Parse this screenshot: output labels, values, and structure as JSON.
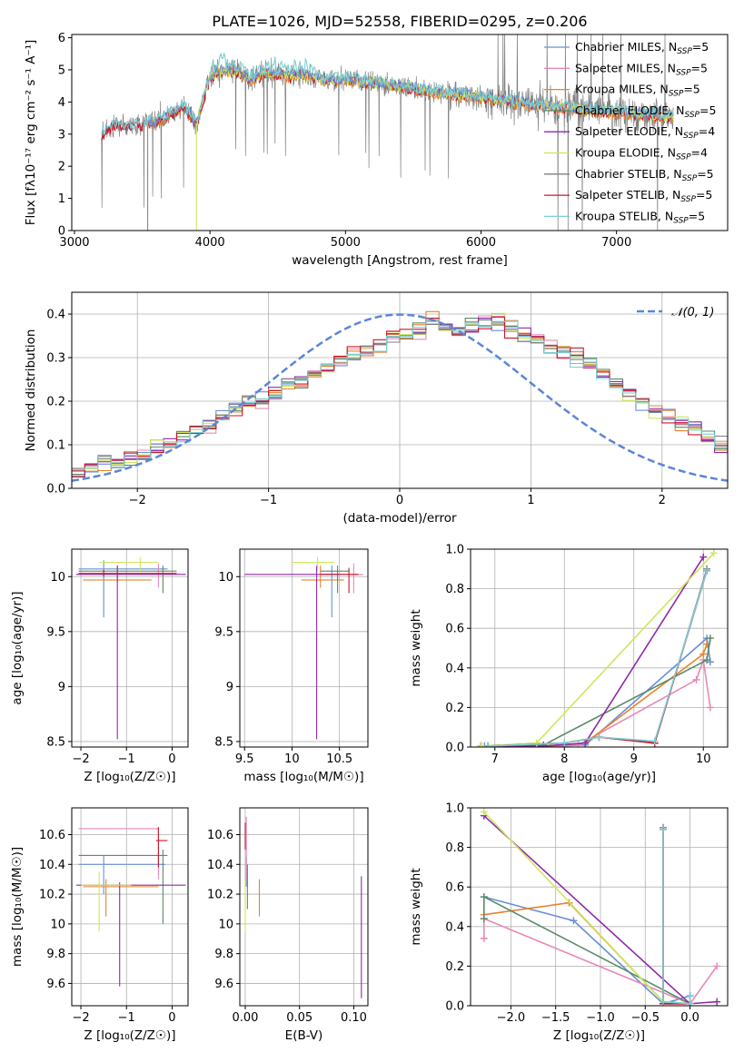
{
  "colors": {
    "Chabrier MILES": "#6a8fd6",
    "Salpeter MILES": "#e888b8",
    "Kroupa MILES": "#e8832a",
    "Chabrier ELODIE": "#5a8a6a",
    "Salpeter ELODIE": "#8e2aa8",
    "Kroupa ELODIE": "#cce85a",
    "Chabrier STELIB": "#7f7f7f",
    "Salpeter STELIB": "#c8182a",
    "Kroupa STELIB": "#7ccfd4",
    "normal": "#5a86d6",
    "grid": "#b0b0b0"
  },
  "chart_data": [
    {
      "id": "spectrum",
      "type": "line",
      "title": "PLATE=1026, MJD=52558, FIBERID=0295, z=0.206",
      "xlabel": "wavelength [Angstrom, rest frame]",
      "ylabel": "Flux [fλ10⁻¹⁷ erg cm⁻² s⁻¹ A⁻¹]",
      "xlim": [
        2980,
        7820
      ],
      "ylim": [
        0,
        6.1
      ],
      "xticks": [
        3000,
        4000,
        5000,
        6000,
        7000
      ],
      "yticks": [
        0,
        1,
        2,
        3,
        4,
        5,
        6
      ],
      "grid": false,
      "legend_position": "top-right",
      "legend": [
        {
          "label": "Chabrier MILES, N",
          "sub": "SSP",
          "suffix": "=5"
        },
        {
          "label": "Salpeter MILES, N",
          "sub": "SSP",
          "suffix": "=5"
        },
        {
          "label": "Kroupa MILES, N",
          "sub": "SSP",
          "suffix": "=5"
        },
        {
          "label": "Chabrier ELODIE, N",
          "sub": "SSP",
          "suffix": "=5"
        },
        {
          "label": "Salpeter ELODIE, N",
          "sub": "SSP",
          "suffix": "=4"
        },
        {
          "label": "Kroupa ELODIE, N",
          "sub": "SSP",
          "suffix": "=4"
        },
        {
          "label": "Chabrier STELIB, N",
          "sub": "SSP",
          "suffix": "=5"
        },
        {
          "label": "Salpeter STELIB, N",
          "sub": "SSP",
          "suffix": "=5"
        },
        {
          "label": "Kroupa STELIB, N",
          "sub": "SSP",
          "suffix": "=5"
        }
      ],
      "continuum": [
        [
          3200,
          3.0
        ],
        [
          3300,
          3.3
        ],
        [
          3400,
          3.25
        ],
        [
          3500,
          3.3
        ],
        [
          3600,
          3.4
        ],
        [
          3700,
          3.6
        ],
        [
          3800,
          3.9
        ],
        [
          3900,
          3.3
        ],
        [
          3950,
          4.1
        ],
        [
          4000,
          4.8
        ],
        [
          4100,
          5.0
        ],
        [
          4200,
          4.95
        ],
        [
          4300,
          4.7
        ],
        [
          4400,
          4.9
        ],
        [
          4500,
          4.9
        ],
        [
          4600,
          4.8
        ],
        [
          4700,
          4.85
        ],
        [
          4800,
          4.7
        ],
        [
          4900,
          4.7
        ],
        [
          5000,
          4.7
        ],
        [
          5200,
          4.6
        ],
        [
          5400,
          4.5
        ],
        [
          5600,
          4.35
        ],
        [
          5800,
          4.25
        ],
        [
          6000,
          4.15
        ],
        [
          6200,
          4.05
        ],
        [
          6400,
          3.9
        ],
        [
          6600,
          3.85
        ],
        [
          6800,
          3.75
        ],
        [
          7000,
          3.7
        ],
        [
          7200,
          3.6
        ],
        [
          7400,
          3.55
        ]
      ]
    },
    {
      "id": "residuals",
      "type": "line",
      "xlabel": "(data-model)/error",
      "ylabel": "Normed distribution",
      "xlim": [
        -2.5,
        2.5
      ],
      "ylim": [
        0,
        0.45
      ],
      "xticks": [
        -2,
        -1,
        0,
        1,
        2
      ],
      "yticks": [
        0.0,
        0.1,
        0.2,
        0.3,
        0.4
      ],
      "grid": true,
      "legend_position": "top-right",
      "legend": "𝒩(0, 1)",
      "bin_edges_start": -2.5,
      "bin_width": 0.1,
      "hist_mean": [
        0.04,
        0.05,
        0.06,
        0.055,
        0.07,
        0.08,
        0.09,
        0.1,
        0.12,
        0.13,
        0.145,
        0.16,
        0.18,
        0.2,
        0.205,
        0.215,
        0.24,
        0.25,
        0.26,
        0.28,
        0.29,
        0.31,
        0.32,
        0.33,
        0.35,
        0.35,
        0.36,
        0.38,
        0.37,
        0.36,
        0.37,
        0.38,
        0.385,
        0.37,
        0.35,
        0.34,
        0.32,
        0.31,
        0.3,
        0.28,
        0.26,
        0.24,
        0.22,
        0.2,
        0.18,
        0.16,
        0.15,
        0.14,
        0.12,
        0.1,
        0.09,
        0.08,
        0.075,
        0.07,
        0.065,
        0.06,
        0.05,
        0.05,
        0.045,
        0.04
      ]
    },
    {
      "id": "age-vs-Z",
      "type": "scatter",
      "xlabel": "Z [log₁₀(Z/Z☉)]",
      "ylabel": "age  [log₁₀(age/yr)]",
      "xlim": [
        -2.2,
        0.35
      ],
      "ylim": [
        8.45,
        10.25
      ],
      "xticks": [
        -2,
        -1,
        0
      ],
      "yticks": [
        8.5,
        9.0,
        9.5,
        10.0
      ],
      "grid": true,
      "errorbars": [
        {
          "m": "Chabrier MILES",
          "x": -1.5,
          "x0": -2.05,
          "x1": -0.1,
          "y": 10.07,
          "y0": 9.63,
          "y1": 10.15
        },
        {
          "m": "Salpeter MILES",
          "x": -0.3,
          "x0": -2.1,
          "x1": 0.0,
          "y": 10.02,
          "y0": 9.9,
          "y1": 10.12
        },
        {
          "m": "Kroupa MILES",
          "x": -1.2,
          "x0": -1.95,
          "x1": -0.45,
          "y": 9.97,
          "y1": 10.1,
          "y0": 9.95
        },
        {
          "m": "Chabrier ELODIE",
          "x": -0.2,
          "x0": -2.05,
          "x1": 0.1,
          "y": 10.05,
          "y0": 9.85,
          "y1": 10.1
        },
        {
          "m": "Salpeter ELODIE",
          "x": -1.2,
          "x0": -2.1,
          "x1": 0.3,
          "y": 10.02,
          "y0": 8.52,
          "y1": 10.1
        },
        {
          "m": "Kroupa ELODIE",
          "x": -0.7,
          "x0": -1.6,
          "x1": -0.3,
          "y": 10.13,
          "y0": 10.05,
          "y1": 10.18
        },
        {
          "m": "Salpeter STELIB",
          "x": -1.5,
          "x0": -2.05,
          "x1": 0.1,
          "y": 10.03,
          "y0": 10.0,
          "y1": 10.06
        }
      ]
    },
    {
      "id": "age-vs-mass",
      "type": "scatter",
      "xlabel": "mass [log₁₀(M/M☉)]",
      "xlim": [
        9.45,
        10.8
      ],
      "ylim": [
        8.45,
        10.25
      ],
      "xticks": [
        9.5,
        10.0,
        10.5
      ],
      "yticks": [
        8.5,
        9.0,
        9.5,
        10.0
      ],
      "grid": true,
      "errorbars": [
        {
          "m": "Chabrier MILES",
          "x": 10.42,
          "x0": 10.3,
          "x1": 10.55,
          "y": 10.02,
          "y0": 9.63,
          "y1": 10.1
        },
        {
          "m": "Salpeter MILES",
          "x": 10.65,
          "x0": 10.55,
          "x1": 10.75,
          "y": 10.02,
          "y0": 9.85,
          "y1": 10.12
        },
        {
          "m": "Kroupa MILES",
          "x": 10.3,
          "x0": 10.1,
          "x1": 10.55,
          "y": 9.97,
          "y0": 9.9,
          "y1": 10.1
        },
        {
          "m": "Chabrier ELODIE",
          "x": 10.48,
          "x0": 10.3,
          "x1": 10.6,
          "y": 10.05,
          "y0": 9.85,
          "y1": 10.1
        },
        {
          "m": "Salpeter ELODIE",
          "x": 10.26,
          "x0": 9.5,
          "x1": 10.5,
          "y": 10.02,
          "y0": 8.52,
          "y1": 10.1
        },
        {
          "m": "Kroupa ELODIE",
          "x": 10.27,
          "x0": 10.0,
          "x1": 10.45,
          "y": 10.13,
          "y0": 10.05,
          "y1": 10.18
        },
        {
          "m": "Salpeter STELIB",
          "x": 10.6,
          "x0": 10.3,
          "x1": 10.7,
          "y": 10.02,
          "y0": 9.85,
          "y1": 10.08
        }
      ]
    },
    {
      "id": "weight-vs-age",
      "type": "line",
      "xlabel": "age  [log₁₀(age/yr)]",
      "ylabel": "mass weight",
      "xlim": [
        6.65,
        10.35
      ],
      "ylim": [
        0,
        1.0
      ],
      "xticks": [
        7,
        8,
        9,
        10
      ],
      "yticks": [
        0.0,
        0.2,
        0.4,
        0.6,
        0.8,
        1.0
      ],
      "grid": true,
      "series": [
        {
          "m": "Chabrier MILES",
          "x": [
            6.85,
            7.9,
            8.3,
            10.05,
            10.1
          ],
          "y": [
            0.005,
            0.005,
            0.01,
            0.55,
            0.43
          ]
        },
        {
          "m": "Salpeter MILES",
          "x": [
            6.8,
            7.9,
            8.2,
            9.9,
            10.0,
            10.1
          ],
          "y": [
            0.005,
            0.005,
            0.01,
            0.34,
            0.44,
            0.2
          ]
        },
        {
          "m": "Kroupa MILES",
          "x": [
            6.8,
            7.8,
            8.3,
            10.0,
            10.05
          ],
          "y": [
            0.005,
            0.005,
            0.02,
            0.47,
            0.52
          ]
        },
        {
          "m": "Chabrier ELODIE",
          "x": [
            6.8,
            7.7,
            10.05,
            10.1
          ],
          "y": [
            0.005,
            0.01,
            0.44,
            0.55
          ]
        },
        {
          "m": "Salpeter ELODIE",
          "x": [
            6.8,
            7.7,
            8.3,
            10.0
          ],
          "y": [
            0.005,
            0.005,
            0.02,
            0.96
          ]
        },
        {
          "m": "Kroupa ELODIE",
          "x": [
            6.8,
            7.6,
            10.15
          ],
          "y": [
            0.005,
            0.02,
            0.98
          ]
        },
        {
          "m": "Chabrier STELIB",
          "x": [
            6.9,
            8.0,
            8.5,
            9.3,
            10.05
          ],
          "y": [
            0.005,
            0.02,
            0.05,
            0.02,
            0.9
          ]
        },
        {
          "m": "Salpeter STELIB",
          "x": [
            6.9,
            8.0,
            8.5,
            9.3,
            10.05
          ],
          "y": [
            0.005,
            0.02,
            0.05,
            0.02,
            0.89
          ]
        },
        {
          "m": "Kroupa STELIB",
          "x": [
            6.9,
            8.0,
            8.5,
            9.3,
            10.05
          ],
          "y": [
            0.005,
            0.02,
            0.05,
            0.03,
            0.89
          ]
        }
      ]
    },
    {
      "id": "mass-vs-Z",
      "type": "scatter",
      "xlabel": "Z [log₁₀(Z/Z☉)]",
      "ylabel": "mass [log₁₀(M/M☉)]",
      "xlim": [
        -2.2,
        0.35
      ],
      "ylim": [
        9.45,
        10.78
      ],
      "xticks": [
        -2,
        -1,
        0
      ],
      "yticks": [
        9.6,
        9.8,
        10.0,
        10.2,
        10.4,
        10.6
      ],
      "grid": true,
      "errorbars": [
        {
          "m": "Chabrier MILES",
          "x": -1.5,
          "x0": -2.05,
          "x1": -0.15,
          "y": 10.4,
          "y0": 10.2,
          "y1": 10.46
        },
        {
          "m": "Salpeter MILES",
          "x": -0.3,
          "x0": -2.05,
          "x1": -0.3,
          "y": 10.64,
          "y0": 10.3,
          "y1": 10.65
        },
        {
          "m": "Kroupa MILES",
          "x": -1.45,
          "x0": -1.95,
          "x1": -0.3,
          "y": 10.25,
          "y0": 10.05,
          "y1": 10.3
        },
        {
          "m": "Chabrier ELODIE",
          "x": -0.2,
          "x0": -2.05,
          "x1": -0.1,
          "y": 10.46,
          "y0": 10.0,
          "y1": 10.5
        },
        {
          "m": "Salpeter ELODIE",
          "x": -1.15,
          "x0": -2.1,
          "x1": 0.3,
          "y": 10.26,
          "y0": 9.58,
          "y1": 10.28
        },
        {
          "m": "Kroupa ELODIE",
          "x": -1.6,
          "x0": -2.0,
          "x1": -0.9,
          "y": 10.26,
          "y0": 9.95,
          "y1": 10.35
        },
        {
          "m": "Salpeter STELIB",
          "x": -0.3,
          "x0": -0.35,
          "x1": -0.1,
          "y": 10.56,
          "y0": 10.38,
          "y1": 10.65
        }
      ]
    },
    {
      "id": "mass-vs-ebv",
      "type": "scatter",
      "xlabel": "E(B-V)",
      "xlim": [
        -0.005,
        0.113
      ],
      "ylim": [
        9.45,
        10.78
      ],
      "xticks": [
        0.0,
        0.05,
        0.1
      ],
      "xtick_labels": [
        "0.00",
        "0.05",
        "0.10"
      ],
      "yticks": [
        9.6,
        9.8,
        10.0,
        10.2,
        10.4,
        10.6
      ],
      "grid": true,
      "errorbars": [
        {
          "m": "Chabrier MILES",
          "x": 0.001,
          "y": 10.4,
          "y0": 10.25,
          "y1": 10.45
        },
        {
          "m": "Salpeter MILES",
          "x": 0.001,
          "y": 10.62,
          "y0": 10.3,
          "y1": 10.72
        },
        {
          "m": "Kroupa MILES",
          "x": 0.013,
          "y": 10.2,
          "y0": 10.05,
          "y1": 10.3
        },
        {
          "m": "Chabrier ELODIE",
          "x": 0.002,
          "y": 10.3,
          "y0": 10.1,
          "y1": 10.4
        },
        {
          "m": "Salpeter ELODIE",
          "x": 0.107,
          "y": 10.0,
          "y0": 9.5,
          "y1": 10.32
        },
        {
          "m": "Kroupa ELODIE",
          "x": 0.0,
          "y": 10.1,
          "y0": 9.95,
          "y1": 10.3
        },
        {
          "m": "Salpeter STELIB",
          "x": 0.0,
          "y": 10.6,
          "y0": 10.5,
          "y1": 10.68
        }
      ]
    },
    {
      "id": "weight-vs-Z",
      "type": "line",
      "xlabel": "Z [log₁₀(Z/Z☉)]",
      "ylabel": "mass weight",
      "xlim": [
        -2.45,
        0.42
      ],
      "ylim": [
        0,
        1.0
      ],
      "xticks": [
        -2.0,
        -1.5,
        -1.0,
        -0.5,
        0.0
      ],
      "xtick_labels": [
        "−2.0",
        "−1.5",
        "−1.0",
        "−0.5",
        "0.0"
      ],
      "yticks": [
        0.0,
        0.2,
        0.4,
        0.6,
        0.8,
        1.0
      ],
      "grid": true,
      "series": [
        {
          "m": "Chabrier MILES",
          "x": [
            -2.3,
            -1.3,
            -0.3,
            0.0
          ],
          "y": [
            0.55,
            0.43,
            0.01,
            0.05
          ]
        },
        {
          "m": "Salpeter MILES",
          "x": [
            -2.3,
            -2.3,
            0.0,
            0.3
          ],
          "y": [
            0.34,
            0.44,
            0.01,
            0.2
          ]
        },
        {
          "m": "Kroupa MILES",
          "x": [
            -2.3,
            -1.35,
            -0.3,
            0.0
          ],
          "y": [
            0.46,
            0.52,
            0.02,
            0.01
          ]
        },
        {
          "m": "Chabrier ELODIE",
          "x": [
            -2.3,
            -2.3,
            0.0
          ],
          "y": [
            0.44,
            0.55,
            0.01
          ]
        },
        {
          "m": "Salpeter ELODIE",
          "x": [
            -2.3,
            0.0,
            0.3
          ],
          "y": [
            0.96,
            0.01,
            0.02
          ]
        },
        {
          "m": "Kroupa ELODIE",
          "x": [
            -2.3,
            -0.3,
            0.0
          ],
          "y": [
            0.98,
            0.02,
            0.01
          ]
        },
        {
          "m": "Chabrier STELIB",
          "x": [
            -0.3,
            -0.3,
            0.0,
            0.0
          ],
          "y": [
            0.9,
            0.01,
            0.01,
            0.05
          ]
        },
        {
          "m": "Salpeter STELIB",
          "x": [
            -0.3,
            -0.3,
            0.0
          ],
          "y": [
            0.89,
            0.01,
            0.01
          ]
        },
        {
          "m": "Kroupa STELIB",
          "x": [
            -0.3,
            -0.3,
            0.0,
            0.0
          ],
          "y": [
            0.89,
            0.02,
            0.01,
            0.05
          ]
        }
      ]
    }
  ]
}
